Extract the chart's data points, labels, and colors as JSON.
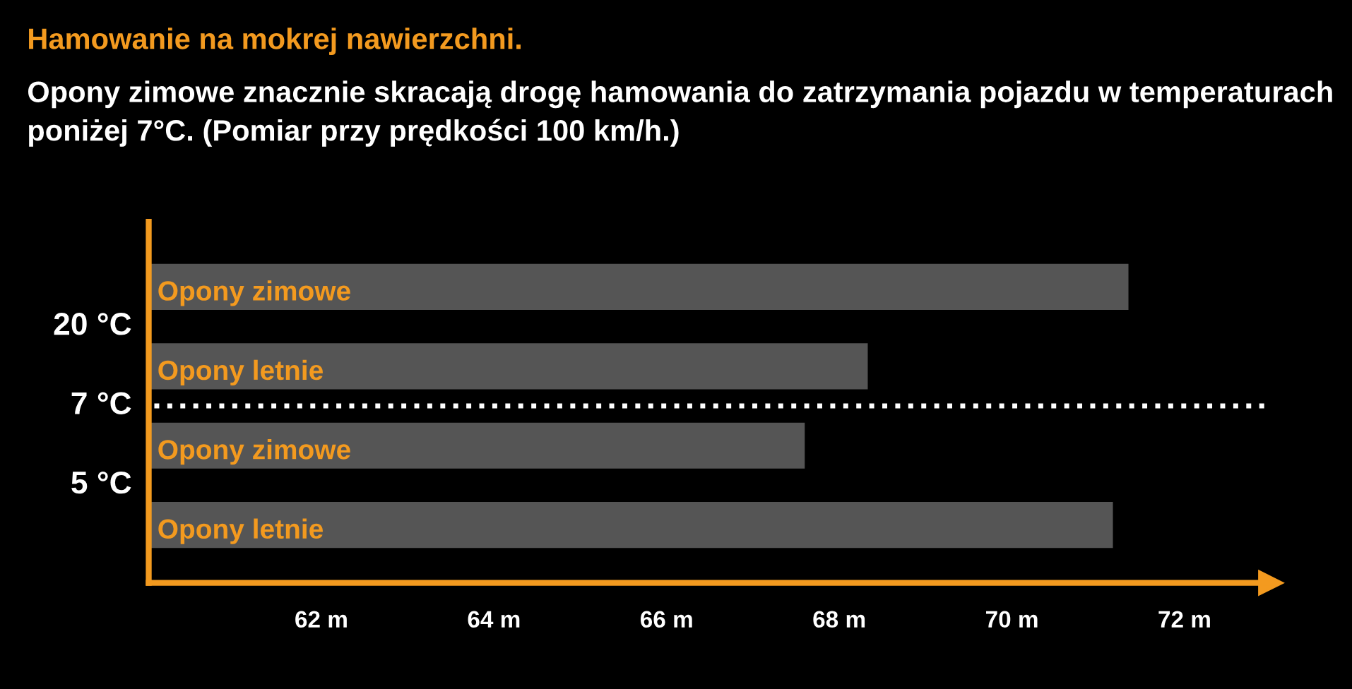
{
  "chart_data": {
    "type": "bar",
    "orientation": "horizontal",
    "title": "Hamowanie na mokrej nawierzchni.",
    "subtitle": "Opony zimowe znacznie skracają drogę hamowania do zatrzymania pojazdu w temperaturach poniżej 7°C. (Pomiar przy prędkości 100 km/h.)",
    "categories": [
      "Opony zimowe",
      "Opony letnie",
      "Opony zimowe",
      "Opony letnie"
    ],
    "values": [
      71.35,
      68.33,
      67.6,
      71.17
    ],
    "color": "#555555",
    "xlim": [
      60,
      73
    ],
    "xticks": [
      {
        "value": 62,
        "label": "62 m"
      },
      {
        "value": 64,
        "label": "64 m"
      },
      {
        "value": 66,
        "label": "66 m"
      },
      {
        "value": 68,
        "label": "68 m"
      },
      {
        "value": 70,
        "label": "70 m"
      },
      {
        "value": 72,
        "label": "72 m"
      }
    ],
    "annotations": [
      "20 °C",
      "7 °C",
      "5 °C"
    ],
    "grid": false,
    "legend": false
  }
}
